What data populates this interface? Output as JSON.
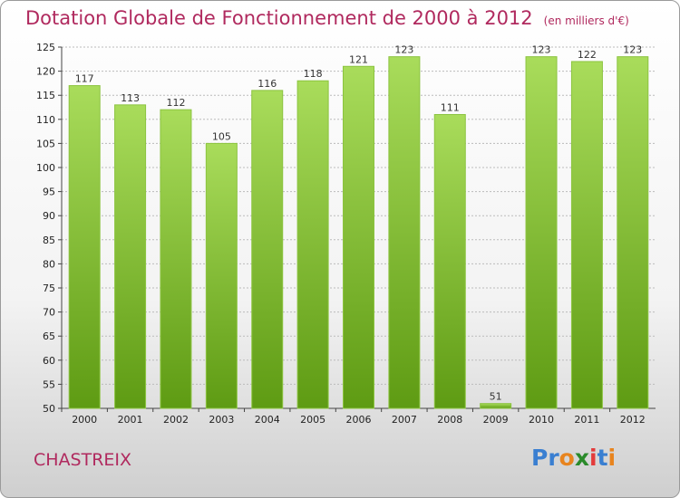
{
  "title": "Dotation Globale de Fonctionnement de 2000 à 2012",
  "unit": "(en milliers d'€)",
  "commune": "CHASTREIX",
  "logo": {
    "text": "Proxiti",
    "letters": [
      "P",
      "r",
      "o",
      "x",
      "i",
      "t",
      "i"
    ],
    "colors": [
      "#3a7fd1",
      "#3a7fd1",
      "#e8841e",
      "#2a8a2a",
      "#e33b3b",
      "#3a7fd1",
      "#e8841e"
    ]
  },
  "colors": {
    "title": "#b0295e",
    "bar_light": "#a9dc5b",
    "bar_dark": "#5e9b13",
    "grid": "#bbbbbb"
  },
  "chart_data": {
    "type": "bar",
    "categories": [
      "2000",
      "2001",
      "2002",
      "2003",
      "2004",
      "2005",
      "2006",
      "2007",
      "2008",
      "2009",
      "2010",
      "2011",
      "2012"
    ],
    "values": [
      117,
      113,
      112,
      105,
      116,
      118,
      121,
      123,
      111,
      51,
      123,
      122,
      123
    ],
    "ylim": [
      50,
      125
    ],
    "yticks": [
      50,
      55,
      60,
      65,
      70,
      75,
      80,
      85,
      90,
      95,
      100,
      105,
      110,
      115,
      120,
      125
    ],
    "grid": true,
    "grid_axis": "y",
    "data_labels": true
  }
}
